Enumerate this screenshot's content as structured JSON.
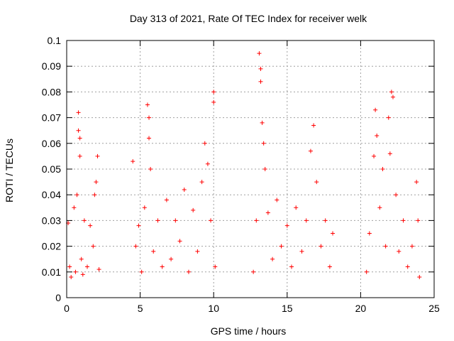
{
  "chart_data": {
    "type": "scatter",
    "title": "Day 313 of 2021, Rate Of TEC Index for receiver welk",
    "xlabel": "GPS time / hours",
    "ylabel": "ROTI / TECUs",
    "xlim": [
      0,
      25
    ],
    "ylim": [
      0,
      0.1
    ],
    "xticks": [
      "0",
      "5",
      "10",
      "15",
      "20",
      "25"
    ],
    "xtick_values": [
      0,
      5,
      10,
      15,
      20,
      25
    ],
    "yticks": [
      "0",
      "0.01",
      "0.02",
      "0.03",
      "0.04",
      "0.05",
      "0.06",
      "0.07",
      "0.08",
      "0.09",
      "0.1"
    ],
    "ytick_values": [
      0,
      0.01,
      0.02,
      0.03,
      0.04,
      0.05,
      0.06,
      0.07,
      0.08,
      0.09,
      0.1
    ],
    "grid": true,
    "marker": "plus",
    "color": "#ff0000",
    "series": [
      {
        "points": [
          [
            0.1,
            0.029
          ],
          [
            0.2,
            0.012
          ],
          [
            0.3,
            0.008
          ],
          [
            0.5,
            0.035
          ],
          [
            0.6,
            0.01
          ],
          [
            0.7,
            0.04
          ],
          [
            0.8,
            0.072
          ],
          [
            0.8,
            0.065
          ],
          [
            0.9,
            0.062
          ],
          [
            0.9,
            0.055
          ],
          [
            1.0,
            0.015
          ],
          [
            1.1,
            0.009
          ],
          [
            1.2,
            0.03
          ],
          [
            1.4,
            0.012
          ],
          [
            1.6,
            0.028
          ],
          [
            1.8,
            0.02
          ],
          [
            1.9,
            0.04
          ],
          [
            2.0,
            0.045
          ],
          [
            2.1,
            0.055
          ],
          [
            2.2,
            0.011
          ],
          [
            4.5,
            0.053
          ],
          [
            4.7,
            0.02
          ],
          [
            4.9,
            0.028
          ],
          [
            5.1,
            0.01
          ],
          [
            5.3,
            0.035
          ],
          [
            5.5,
            0.075
          ],
          [
            5.6,
            0.07
          ],
          [
            5.6,
            0.062
          ],
          [
            5.7,
            0.05
          ],
          [
            5.9,
            0.018
          ],
          [
            6.2,
            0.03
          ],
          [
            6.5,
            0.012
          ],
          [
            6.8,
            0.038
          ],
          [
            7.1,
            0.015
          ],
          [
            7.4,
            0.03
          ],
          [
            7.7,
            0.022
          ],
          [
            8.0,
            0.042
          ],
          [
            8.3,
            0.01
          ],
          [
            8.6,
            0.034
          ],
          [
            8.9,
            0.018
          ],
          [
            9.2,
            0.045
          ],
          [
            9.4,
            0.06
          ],
          [
            9.6,
            0.052
          ],
          [
            9.8,
            0.03
          ],
          [
            10.0,
            0.08
          ],
          [
            10.0,
            0.076
          ],
          [
            10.1,
            0.012
          ],
          [
            12.7,
            0.01
          ],
          [
            12.9,
            0.03
          ],
          [
            13.1,
            0.095
          ],
          [
            13.2,
            0.089
          ],
          [
            13.2,
            0.084
          ],
          [
            13.3,
            0.068
          ],
          [
            13.4,
            0.06
          ],
          [
            13.5,
            0.05
          ],
          [
            13.7,
            0.033
          ],
          [
            14.0,
            0.015
          ],
          [
            14.3,
            0.038
          ],
          [
            14.6,
            0.02
          ],
          [
            15.0,
            0.028
          ],
          [
            15.3,
            0.012
          ],
          [
            15.6,
            0.035
          ],
          [
            16.0,
            0.018
          ],
          [
            16.3,
            0.03
          ],
          [
            16.6,
            0.057
          ],
          [
            16.8,
            0.067
          ],
          [
            17.0,
            0.045
          ],
          [
            17.3,
            0.02
          ],
          [
            17.6,
            0.03
          ],
          [
            17.9,
            0.012
          ],
          [
            18.1,
            0.025
          ],
          [
            20.4,
            0.01
          ],
          [
            20.6,
            0.025
          ],
          [
            20.9,
            0.055
          ],
          [
            21.0,
            0.073
          ],
          [
            21.1,
            0.063
          ],
          [
            21.3,
            0.035
          ],
          [
            21.5,
            0.05
          ],
          [
            21.7,
            0.02
          ],
          [
            21.9,
            0.07
          ],
          [
            22.0,
            0.056
          ],
          [
            22.1,
            0.08
          ],
          [
            22.2,
            0.078
          ],
          [
            22.4,
            0.04
          ],
          [
            22.6,
            0.018
          ],
          [
            22.9,
            0.03
          ],
          [
            23.2,
            0.012
          ],
          [
            23.5,
            0.02
          ],
          [
            23.8,
            0.045
          ],
          [
            23.9,
            0.03
          ],
          [
            24.0,
            0.008
          ]
        ]
      }
    ]
  }
}
